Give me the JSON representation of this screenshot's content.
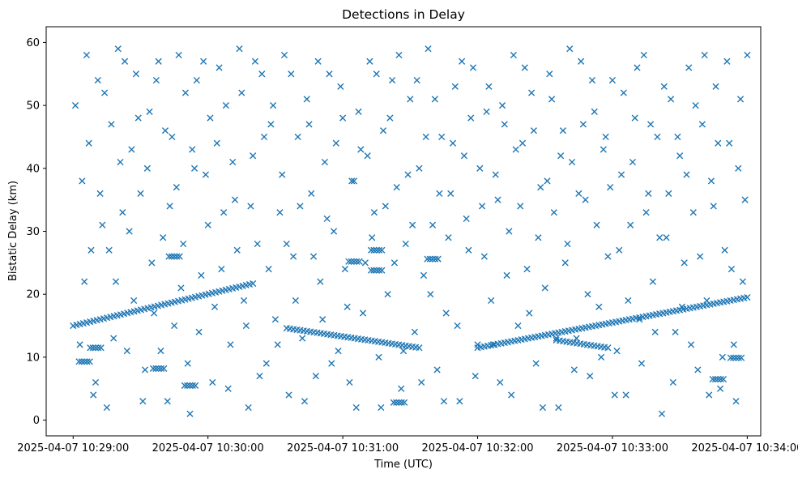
{
  "chart_data": {
    "type": "scatter",
    "title": "Detections in Delay",
    "xlabel": "Time (UTC)",
    "ylabel": "Bistatic Delay (km)",
    "x_unit": "time",
    "xlim": [
      "2025-04-07 10:28:48",
      "2025-04-07 10:34:06"
    ],
    "ylim": [
      -2.5,
      62.5
    ],
    "x_ticks": [
      {
        "value": "2025-04-07 10:29:00",
        "label": "2025-04-07 10:29:00"
      },
      {
        "value": "2025-04-07 10:30:00",
        "label": "2025-04-07 10:30:00"
      },
      {
        "value": "2025-04-07 10:31:00",
        "label": "2025-04-07 10:31:00"
      },
      {
        "value": "2025-04-07 10:32:00",
        "label": "2025-04-07 10:32:00"
      },
      {
        "value": "2025-04-07 10:33:00",
        "label": "2025-04-07 10:33:00"
      },
      {
        "value": "2025-04-07 10:34:00",
        "label": "2025-04-07 10:34:00"
      }
    ],
    "y_ticks": [
      0,
      10,
      20,
      30,
      40,
      50,
      60
    ],
    "grid": false,
    "legend": "none",
    "marker": "x",
    "color": "#1f77b4",
    "tracks": [
      {
        "start": {
          "t": "2025-04-07 10:29:00",
          "delay": 15.0
        },
        "end": {
          "t": "2025-04-07 10:30:20",
          "delay": 21.7
        }
      },
      {
        "start": {
          "t": "2025-04-07 10:30:35",
          "delay": 14.6
        },
        "end": {
          "t": "2025-04-07 10:31:34",
          "delay": 11.5
        }
      },
      {
        "start": {
          "t": "2025-04-07 10:32:00",
          "delay": 11.5
        },
        "end": {
          "t": "2025-04-07 10:34:00",
          "delay": 19.5
        }
      },
      {
        "start": {
          "t": "2025-04-07 10:32:35",
          "delay": 12.7
        },
        "end": {
          "t": "2025-04-07 10:32:58",
          "delay": 11.5
        }
      }
    ],
    "clusters": [
      {
        "t": "2025-04-07 10:29:05",
        "delay": 9.3
      },
      {
        "t": "2025-04-07 10:29:10",
        "delay": 11.5
      },
      {
        "t": "2025-04-07 10:29:38",
        "delay": 8.2
      },
      {
        "t": "2025-04-07 10:29:45",
        "delay": 26.0
      },
      {
        "t": "2025-04-07 10:29:52",
        "delay": 5.5
      },
      {
        "t": "2025-04-07 10:31:05",
        "delay": 25.2
      },
      {
        "t": "2025-04-07 10:31:15",
        "delay": 23.8
      },
      {
        "t": "2025-04-07 10:31:15",
        "delay": 27.0
      },
      {
        "t": "2025-04-07 10:31:40",
        "delay": 25.6
      },
      {
        "t": "2025-04-07 10:31:25",
        "delay": 2.8
      },
      {
        "t": "2025-04-07 10:33:55",
        "delay": 9.9
      },
      {
        "t": "2025-04-07 10:33:47",
        "delay": 6.5
      }
    ],
    "scatter_points": [
      [
        3,
        12
      ],
      [
        4,
        38
      ],
      [
        6,
        58
      ],
      [
        8,
        27
      ],
      [
        9,
        4
      ],
      [
        11,
        54
      ],
      [
        13,
        31
      ],
      [
        15,
        2
      ],
      [
        17,
        47
      ],
      [
        19,
        22
      ],
      [
        20,
        59
      ],
      [
        22,
        33
      ],
      [
        24,
        11
      ],
      [
        26,
        43
      ],
      [
        28,
        55
      ],
      [
        30,
        36
      ],
      [
        32,
        8
      ],
      [
        34,
        49
      ],
      [
        36,
        17
      ],
      [
        38,
        57
      ],
      [
        40,
        29
      ],
      [
        42,
        3
      ],
      [
        44,
        45
      ],
      [
        46,
        37
      ],
      [
        48,
        21
      ],
      [
        50,
        52
      ],
      [
        52,
        1
      ],
      [
        54,
        40
      ],
      [
        56,
        14
      ],
      [
        58,
        57
      ],
      [
        60,
        31
      ],
      [
        62,
        6
      ],
      [
        64,
        44
      ],
      [
        66,
        24
      ],
      [
        68,
        50
      ],
      [
        70,
        12
      ],
      [
        72,
        35
      ],
      [
        74,
        59
      ],
      [
        76,
        19
      ],
      [
        78,
        2
      ],
      [
        80,
        42
      ],
      [
        82,
        28
      ],
      [
        84,
        55
      ],
      [
        86,
        9
      ],
      [
        88,
        47
      ],
      [
        90,
        16
      ],
      [
        92,
        33
      ],
      [
        94,
        58
      ],
      [
        96,
        4
      ],
      [
        98,
        26
      ],
      [
        100,
        45
      ],
      [
        102,
        13
      ],
      [
        104,
        51
      ],
      [
        106,
        36
      ],
      [
        108,
        7
      ],
      [
        110,
        22
      ],
      [
        112,
        41
      ],
      [
        114,
        55
      ],
      [
        116,
        30
      ],
      [
        118,
        11
      ],
      [
        120,
        48
      ],
      [
        122,
        18
      ],
      [
        124,
        38
      ],
      [
        126,
        2
      ],
      [
        128,
        43
      ],
      [
        130,
        25
      ],
      [
        132,
        57
      ],
      [
        134,
        33
      ],
      [
        136,
        10
      ],
      [
        138,
        46
      ],
      [
        140,
        20
      ],
      [
        142,
        54
      ],
      [
        144,
        37
      ],
      [
        146,
        5
      ],
      [
        148,
        28
      ],
      [
        150,
        51
      ],
      [
        152,
        14
      ],
      [
        154,
        40
      ],
      [
        156,
        23
      ],
      [
        158,
        59
      ],
      [
        160,
        31
      ],
      [
        162,
        8
      ],
      [
        164,
        45
      ],
      [
        166,
        17
      ],
      [
        168,
        36
      ],
      [
        170,
        53
      ],
      [
        172,
        3
      ],
      [
        174,
        42
      ],
      [
        176,
        27
      ],
      [
        178,
        56
      ],
      [
        180,
        12
      ],
      [
        182,
        34
      ],
      [
        184,
        49
      ],
      [
        186,
        19
      ],
      [
        188,
        39
      ],
      [
        190,
        6
      ],
      [
        192,
        47
      ],
      [
        194,
        30
      ],
      [
        196,
        58
      ],
      [
        198,
        15
      ],
      [
        200,
        44
      ],
      [
        202,
        24
      ],
      [
        204,
        52
      ],
      [
        206,
        9
      ],
      [
        208,
        37
      ],
      [
        210,
        21
      ],
      [
        212,
        55
      ],
      [
        214,
        33
      ],
      [
        216,
        2
      ],
      [
        218,
        46
      ],
      [
        220,
        28
      ],
      [
        222,
        41
      ],
      [
        224,
        13
      ],
      [
        226,
        57
      ],
      [
        228,
        35
      ],
      [
        230,
        7
      ],
      [
        232,
        49
      ],
      [
        234,
        18
      ],
      [
        236,
        43
      ],
      [
        238,
        26
      ],
      [
        240,
        54
      ],
      [
        242,
        11
      ],
      [
        244,
        39
      ],
      [
        246,
        4
      ],
      [
        248,
        31
      ],
      [
        250,
        48
      ],
      [
        252,
        16
      ],
      [
        254,
        58
      ],
      [
        256,
        36
      ],
      [
        258,
        22
      ],
      [
        260,
        45
      ],
      [
        262,
        1
      ],
      [
        264,
        29
      ],
      [
        266,
        51
      ],
      [
        268,
        14
      ],
      [
        270,
        42
      ],
      [
        272,
        25
      ],
      [
        274,
        56
      ],
      [
        276,
        33
      ],
      [
        278,
        8
      ],
      [
        280,
        47
      ],
      [
        282,
        19
      ],
      [
        284,
        38
      ],
      [
        286,
        53
      ],
      [
        288,
        5
      ],
      [
        290,
        27
      ],
      [
        292,
        44
      ],
      [
        294,
        12
      ],
      [
        296,
        40
      ],
      [
        298,
        22
      ],
      [
        300,
        58
      ],
      [
        1,
        50
      ],
      [
        5,
        22
      ],
      [
        7,
        44
      ],
      [
        10,
        6
      ],
      [
        12,
        36
      ],
      [
        14,
        52
      ],
      [
        16,
        27
      ],
      [
        18,
        13
      ],
      [
        21,
        41
      ],
      [
        23,
        57
      ],
      [
        25,
        30
      ],
      [
        27,
        19
      ],
      [
        29,
        48
      ],
      [
        31,
        3
      ],
      [
        33,
        40
      ],
      [
        35,
        25
      ],
      [
        37,
        54
      ],
      [
        39,
        11
      ],
      [
        41,
        46
      ],
      [
        43,
        34
      ],
      [
        45,
        15
      ],
      [
        47,
        58
      ],
      [
        49,
        28
      ],
      [
        51,
        9
      ],
      [
        53,
        43
      ],
      [
        55,
        54
      ],
      [
        57,
        23
      ],
      [
        59,
        39
      ],
      [
        61,
        48
      ],
      [
        63,
        18
      ],
      [
        65,
        56
      ],
      [
        67,
        33
      ],
      [
        69,
        5
      ],
      [
        71,
        41
      ],
      [
        73,
        27
      ],
      [
        75,
        52
      ],
      [
        77,
        15
      ],
      [
        79,
        34
      ],
      [
        81,
        57
      ],
      [
        83,
        7
      ],
      [
        85,
        45
      ],
      [
        87,
        24
      ],
      [
        89,
        50
      ],
      [
        91,
        12
      ],
      [
        93,
        39
      ],
      [
        95,
        28
      ],
      [
        97,
        55
      ],
      [
        99,
        19
      ],
      [
        101,
        34
      ],
      [
        103,
        3
      ],
      [
        105,
        47
      ],
      [
        107,
        26
      ],
      [
        109,
        57
      ],
      [
        111,
        16
      ],
      [
        113,
        32
      ],
      [
        115,
        9
      ],
      [
        117,
        44
      ],
      [
        119,
        53
      ],
      [
        121,
        24
      ],
      [
        123,
        6
      ],
      [
        125,
        38
      ],
      [
        127,
        49
      ],
      [
        129,
        17
      ],
      [
        131,
        42
      ],
      [
        133,
        29
      ],
      [
        135,
        55
      ],
      [
        137,
        2
      ],
      [
        139,
        34
      ],
      [
        141,
        48
      ],
      [
        143,
        25
      ],
      [
        145,
        58
      ],
      [
        147,
        11
      ],
      [
        149,
        39
      ],
      [
        151,
        31
      ],
      [
        153,
        54
      ],
      [
        155,
        6
      ],
      [
        157,
        45
      ],
      [
        159,
        20
      ],
      [
        161,
        51
      ],
      [
        163,
        36
      ],
      [
        165,
        3
      ],
      [
        167,
        29
      ],
      [
        169,
        44
      ],
      [
        171,
        15
      ],
      [
        173,
        57
      ],
      [
        175,
        32
      ],
      [
        177,
        48
      ],
      [
        179,
        7
      ],
      [
        181,
        40
      ],
      [
        183,
        26
      ],
      [
        185,
        53
      ],
      [
        187,
        12
      ],
      [
        189,
        35
      ],
      [
        191,
        50
      ],
      [
        193,
        23
      ],
      [
        195,
        4
      ],
      [
        197,
        43
      ],
      [
        199,
        34
      ],
      [
        201,
        56
      ],
      [
        203,
        17
      ],
      [
        205,
        46
      ],
      [
        207,
        29
      ],
      [
        209,
        2
      ],
      [
        211,
        38
      ],
      [
        213,
        51
      ],
      [
        215,
        13
      ],
      [
        217,
        42
      ],
      [
        219,
        25
      ],
      [
        221,
        59
      ],
      [
        223,
        8
      ],
      [
        225,
        36
      ],
      [
        227,
        47
      ],
      [
        229,
        20
      ],
      [
        231,
        54
      ],
      [
        233,
        31
      ],
      [
        235,
        10
      ],
      [
        237,
        45
      ],
      [
        239,
        37
      ],
      [
        241,
        4
      ],
      [
        243,
        27
      ],
      [
        245,
        52
      ],
      [
        247,
        19
      ],
      [
        249,
        41
      ],
      [
        251,
        56
      ],
      [
        253,
        9
      ],
      [
        255,
        33
      ],
      [
        257,
        47
      ],
      [
        259,
        14
      ],
      [
        261,
        29
      ],
      [
        263,
        53
      ],
      [
        265,
        36
      ],
      [
        267,
        6
      ],
      [
        269,
        45
      ],
      [
        271,
        18
      ],
      [
        273,
        39
      ],
      [
        275,
        12
      ],
      [
        277,
        50
      ],
      [
        279,
        26
      ],
      [
        281,
        58
      ],
      [
        283,
        4
      ],
      [
        285,
        34
      ],
      [
        287,
        44
      ],
      [
        289,
        10
      ],
      [
        291,
        57
      ],
      [
        293,
        24
      ],
      [
        295,
        3
      ],
      [
        297,
        51
      ],
      [
        299,
        35
      ]
    ]
  }
}
